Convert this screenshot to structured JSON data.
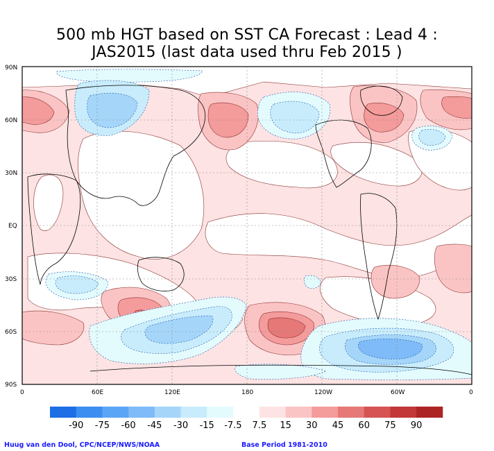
{
  "title": {
    "line1": "500 mb HGT based on SST CA Forecast : Lead 4 :",
    "line2": "JAS2015 (last data used thru Feb 2015 )"
  },
  "axes": {
    "lat_labels": [
      "90N",
      "60N",
      "30N",
      "EQ",
      "30S",
      "60S",
      "90S"
    ],
    "lon_labels": [
      "0",
      "60E",
      "120E",
      "180",
      "120W",
      "60W",
      "0"
    ]
  },
  "legend": {
    "labels": [
      "-90",
      "-75",
      "-60",
      "-45",
      "-30",
      "-15",
      "-7.5",
      "7.5",
      "15",
      "30",
      "45",
      "60",
      "75",
      "90"
    ],
    "neg_colors": [
      "#1e6ee6",
      "#3c8ef0",
      "#5aa5f5",
      "#7fbbf8",
      "#a5d6fa",
      "#c8ecfc",
      "#e4fbfe"
    ],
    "pos_colors": [
      "#fde3e3",
      "#fbc4c4",
      "#f49b9b",
      "#e67878",
      "#d65454",
      "#c23838",
      "#ad2424"
    ]
  },
  "credits": {
    "left": "Huug van den Dool, CPC/NCEP/NWS/NOAA",
    "right": "Base Period 1981-2010"
  }
}
